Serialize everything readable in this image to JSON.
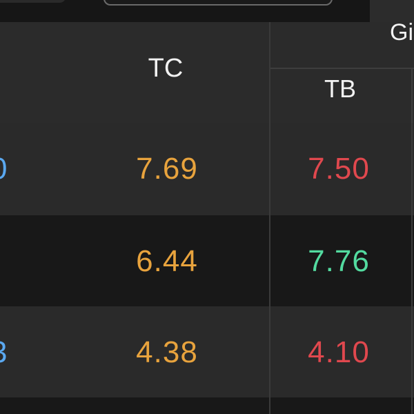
{
  "header": {
    "tc_label": "TC",
    "group_label": "Gi",
    "tb_label": "TB"
  },
  "rows": [
    {
      "code_fragment": "0",
      "tc": "7.69",
      "tb": "7.50",
      "tb_color": "#e0484e"
    },
    {
      "code_fragment": "",
      "tc": "6.44",
      "tb": "7.76",
      "tb_color": "#53dba0"
    },
    {
      "code_fragment": "3",
      "tc": "4.38",
      "tb": "4.10",
      "tb_color": "#e0484e"
    }
  ],
  "colors": {
    "tc_text": "#e8a33d",
    "code_text": "#5aa8f0",
    "down_red": "#e0484e",
    "up_green": "#53dba0"
  }
}
